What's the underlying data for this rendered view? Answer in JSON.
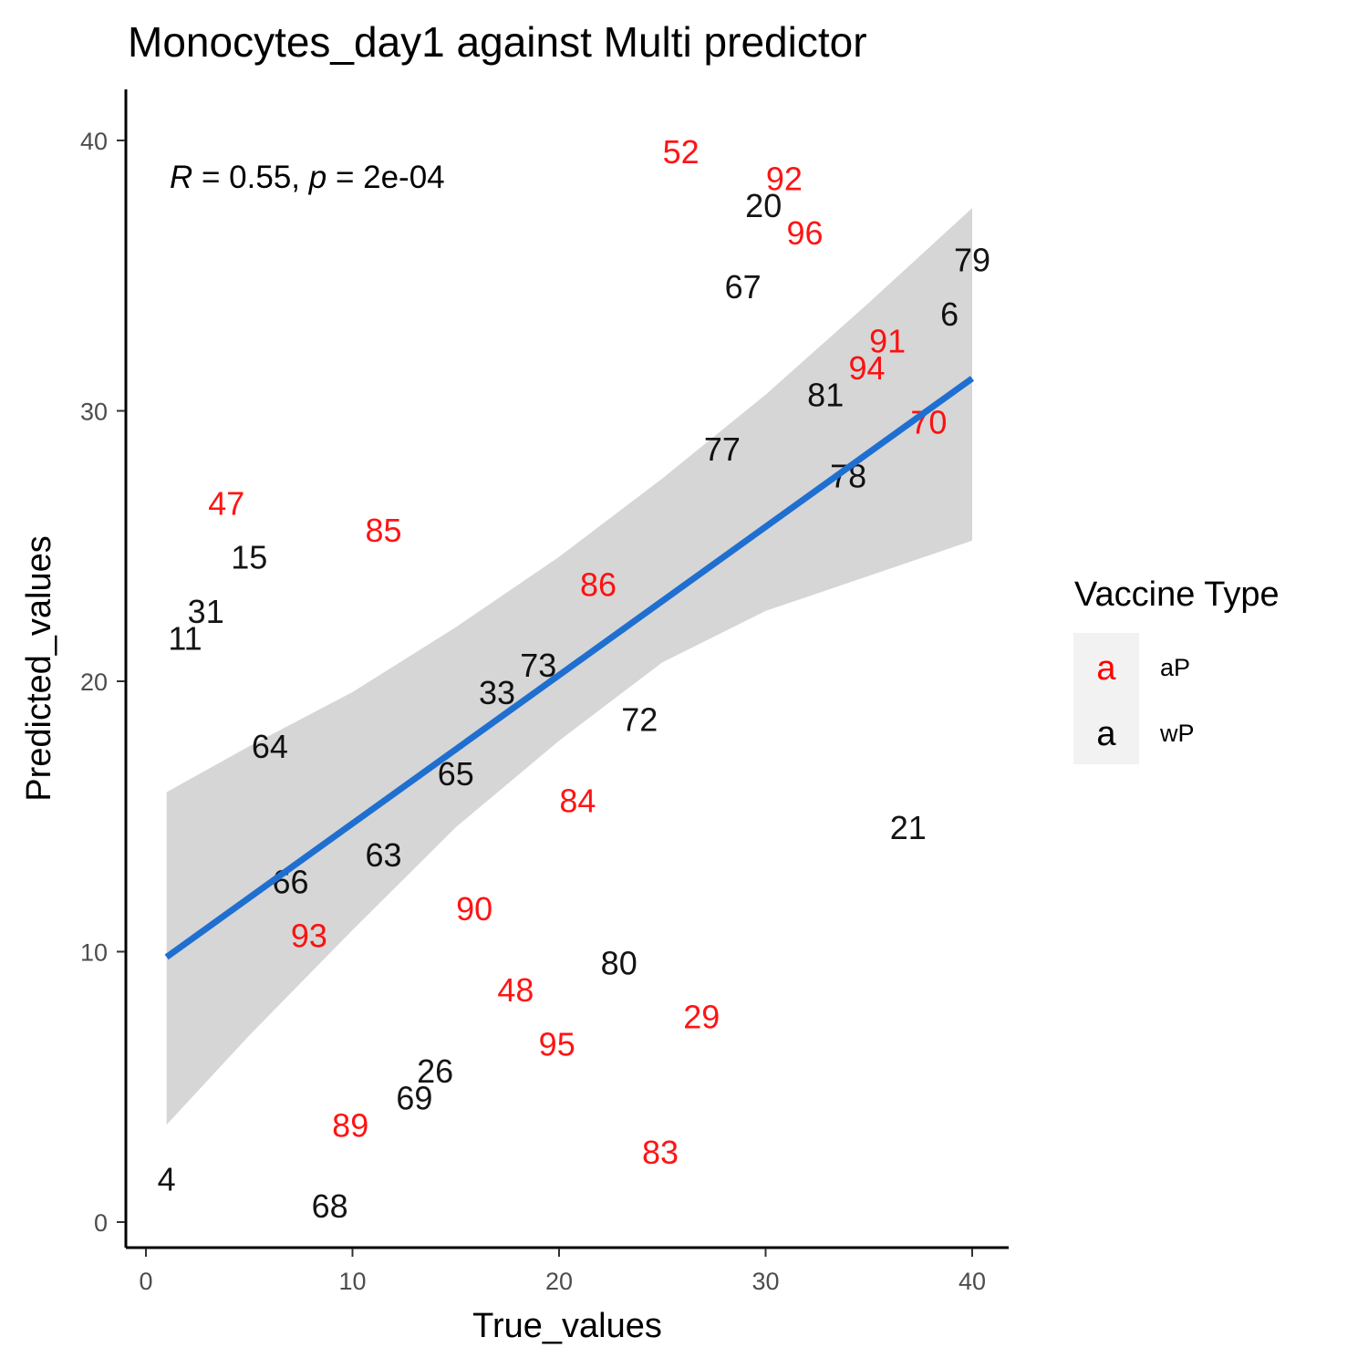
{
  "chart_data": {
    "type": "scatter",
    "title": "Monocytes_day1 against Multi predictor",
    "xlabel": "True_values",
    "ylabel": "Predicted_values",
    "xlim": [
      -1,
      42
    ],
    "ylim": [
      -1,
      42
    ],
    "xticks": [
      0,
      10,
      20,
      30,
      40
    ],
    "yticks": [
      0,
      10,
      20,
      30,
      40
    ],
    "annotation": {
      "r_symbol": "R",
      "r_value": " = 0.55, ",
      "p_symbol": "p",
      "p_value": " = 2e-04"
    },
    "legend": {
      "title": "Vaccine Type",
      "position": "right",
      "entries": [
        {
          "key": "a",
          "label": "aP",
          "color": "#ff0000"
        },
        {
          "key": "a",
          "label": "wP",
          "color": "#000000"
        }
      ]
    },
    "colors": {
      "aP": "#ff0000",
      "wP": "#000000",
      "fit": "#1f6fd1",
      "band": "#d6d6d6"
    },
    "fit": {
      "x": [
        1,
        40
      ],
      "y": [
        9.8,
        31.2
      ]
    },
    "confidence_band": {
      "x": [
        1,
        5,
        10,
        15,
        20,
        25,
        30,
        35,
        40
      ],
      "upper": [
        15.9,
        17.6,
        19.6,
        22.0,
        24.6,
        27.5,
        30.6,
        34.0,
        37.5
      ],
      "lower": [
        3.6,
        6.9,
        10.8,
        14.6,
        17.8,
        20.7,
        22.6,
        23.9,
        25.2
      ]
    },
    "points": [
      {
        "label": "52",
        "x": 25.9,
        "y": 39.6,
        "group": "aP"
      },
      {
        "label": "92",
        "x": 30.9,
        "y": 38.6,
        "group": "aP"
      },
      {
        "label": "20",
        "x": 29.9,
        "y": 37.6,
        "group": "wP"
      },
      {
        "label": "96",
        "x": 31.9,
        "y": 36.6,
        "group": "aP"
      },
      {
        "label": "79",
        "x": 40.0,
        "y": 35.6,
        "group": "wP"
      },
      {
        "label": "67",
        "x": 28.9,
        "y": 34.6,
        "group": "wP"
      },
      {
        "label": "6",
        "x": 38.9,
        "y": 33.6,
        "group": "wP"
      },
      {
        "label": "91",
        "x": 35.9,
        "y": 32.6,
        "group": "aP"
      },
      {
        "label": "94",
        "x": 34.9,
        "y": 31.6,
        "group": "aP"
      },
      {
        "label": "81",
        "x": 32.9,
        "y": 30.6,
        "group": "wP"
      },
      {
        "label": "70",
        "x": 37.9,
        "y": 29.6,
        "group": "aP"
      },
      {
        "label": "77",
        "x": 27.9,
        "y": 28.6,
        "group": "wP"
      },
      {
        "label": "78",
        "x": 34.0,
        "y": 27.6,
        "group": "wP"
      },
      {
        "label": "47",
        "x": 3.9,
        "y": 26.6,
        "group": "aP"
      },
      {
        "label": "85",
        "x": 11.5,
        "y": 25.6,
        "group": "aP"
      },
      {
        "label": "15",
        "x": 5.0,
        "y": 24.6,
        "group": "wP"
      },
      {
        "label": "86",
        "x": 21.9,
        "y": 23.6,
        "group": "aP"
      },
      {
        "label": "31",
        "x": 2.9,
        "y": 22.6,
        "group": "wP"
      },
      {
        "label": "11",
        "x": 1.9,
        "y": 21.6,
        "group": "wP"
      },
      {
        "label": "73",
        "x": 19.0,
        "y": 20.6,
        "group": "wP"
      },
      {
        "label": "33",
        "x": 17.0,
        "y": 19.6,
        "group": "wP"
      },
      {
        "label": "72",
        "x": 23.9,
        "y": 18.6,
        "group": "wP"
      },
      {
        "label": "64",
        "x": 6.0,
        "y": 17.6,
        "group": "wP"
      },
      {
        "label": "65",
        "x": 15.0,
        "y": 16.6,
        "group": "wP"
      },
      {
        "label": "84",
        "x": 20.9,
        "y": 15.6,
        "group": "aP"
      },
      {
        "label": "21",
        "x": 36.9,
        "y": 14.6,
        "group": "wP"
      },
      {
        "label": "63",
        "x": 11.5,
        "y": 13.6,
        "group": "wP"
      },
      {
        "label": "66",
        "x": 7.0,
        "y": 12.6,
        "group": "wP"
      },
      {
        "label": "90",
        "x": 15.9,
        "y": 11.6,
        "group": "aP"
      },
      {
        "label": "93",
        "x": 7.9,
        "y": 10.6,
        "group": "aP"
      },
      {
        "label": "80",
        "x": 22.9,
        "y": 9.6,
        "group": "wP"
      },
      {
        "label": "48",
        "x": 17.9,
        "y": 8.6,
        "group": "aP"
      },
      {
        "label": "29",
        "x": 26.9,
        "y": 7.6,
        "group": "aP"
      },
      {
        "label": "95",
        "x": 19.9,
        "y": 6.6,
        "group": "aP"
      },
      {
        "label": "26",
        "x": 14.0,
        "y": 5.6,
        "group": "wP"
      },
      {
        "label": "69",
        "x": 13.0,
        "y": 4.6,
        "group": "wP"
      },
      {
        "label": "89",
        "x": 9.9,
        "y": 3.6,
        "group": "aP"
      },
      {
        "label": "83",
        "x": 24.9,
        "y": 2.6,
        "group": "aP"
      },
      {
        "label": "4",
        "x": 1.0,
        "y": 1.6,
        "group": "wP"
      },
      {
        "label": "68",
        "x": 8.9,
        "y": 0.6,
        "group": "wP"
      }
    ]
  }
}
